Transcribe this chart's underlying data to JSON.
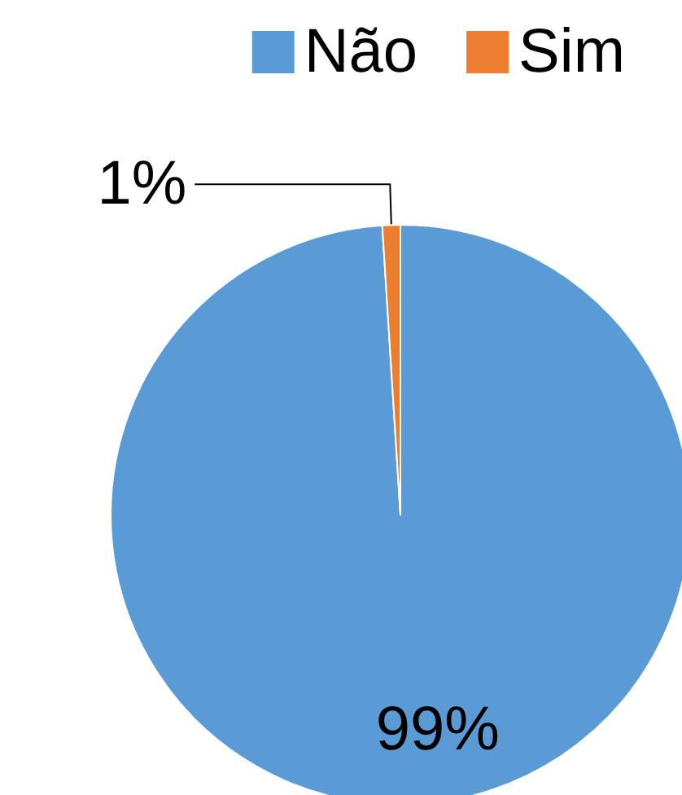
{
  "chart_data": {
    "type": "pie",
    "categories": [
      "Não",
      "Sim"
    ],
    "values": [
      99,
      1
    ],
    "colors": [
      "#5b9bd5",
      "#ed7d31"
    ],
    "legend": "top right",
    "value_labels": [
      "99%",
      "1%"
    ]
  }
}
